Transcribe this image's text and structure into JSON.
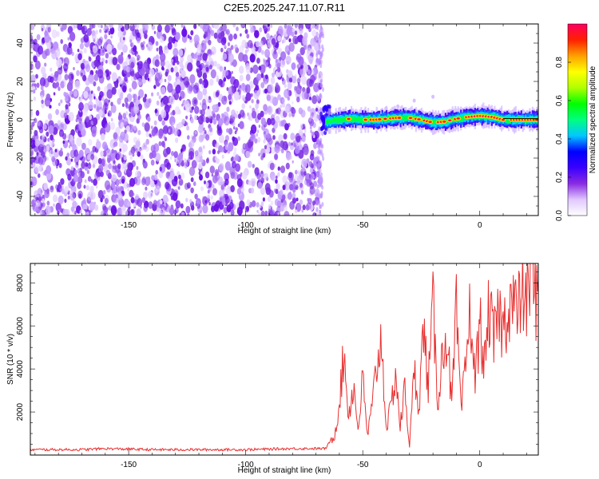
{
  "title": "C2E5.2025.247.11.07.R11",
  "chart_data": [
    {
      "type": "heatmap",
      "name": "spectrogram",
      "title": "C2E5.2025.247.11.07.R11",
      "xlabel": "Height of straight line (km)",
      "ylabel": "Frequency (Hz)",
      "xlim": [
        -192,
        25
      ],
      "ylim": [
        -50,
        50
      ],
      "xticks": [
        -150,
        -100,
        -50,
        0
      ],
      "yticks": [
        -40,
        -20,
        0,
        20,
        40
      ],
      "grid": false,
      "noise_region_x": [
        -192,
        -68
      ],
      "signal_track": [
        {
          "x": -66,
          "y": -1
        },
        {
          "x": -60,
          "y": 0
        },
        {
          "x": -55,
          "y": 0.5
        },
        {
          "x": -50,
          "y": 0
        },
        {
          "x": -45,
          "y": 0
        },
        {
          "x": -40,
          "y": 0.5
        },
        {
          "x": -35,
          "y": 1
        },
        {
          "x": -30,
          "y": 1
        },
        {
          "x": -25,
          "y": 0
        },
        {
          "x": -20,
          "y": -1.5
        },
        {
          "x": -15,
          "y": -1
        },
        {
          "x": -10,
          "y": 0.5
        },
        {
          "x": -5,
          "y": 1.5
        },
        {
          "x": 0,
          "y": 2
        },
        {
          "x": 5,
          "y": 1.5
        },
        {
          "x": 10,
          "y": 0
        },
        {
          "x": 15,
          "y": 0
        },
        {
          "x": 20,
          "y": 0
        },
        {
          "x": 25,
          "y": 0
        }
      ],
      "colorbar": {
        "label": "Normalized spectral amplitude",
        "range": [
          0.0,
          1.0
        ],
        "ticks": [
          "0.0",
          "0.2",
          "0.4",
          "0.6",
          "0.8"
        ],
        "tick_values": [
          0.0,
          0.2,
          0.4,
          0.6,
          0.8
        ],
        "colors": [
          "#ffffff",
          "#e0c8ff",
          "#8a2be2",
          "#3a00ff",
          "#0000ff",
          "#00c8ff",
          "#00ff80",
          "#00ff00",
          "#b0ff00",
          "#ffff00",
          "#ffa000",
          "#ff2000",
          "#ff0060"
        ]
      }
    },
    {
      "type": "line",
      "name": "snr",
      "xlabel": "Height of straight line (km)",
      "ylabel": "SNR (10 * v/v)",
      "xlim": [
        -192,
        25
      ],
      "ylim": [
        0,
        8900
      ],
      "xticks": [
        -150,
        -100,
        -50,
        0
      ],
      "yticks": [
        2000,
        4000,
        6000,
        8000
      ],
      "line_color": "#e83030",
      "series": [
        {
          "name": "SNR",
          "x": [
            -192,
            -170,
            -160,
            -140,
            -120,
            -100,
            -80,
            -66,
            -62,
            -60,
            -58,
            -56,
            -54,
            -52,
            -50,
            -48,
            -46,
            -44,
            -42,
            -40,
            -38,
            -36,
            -34,
            -32,
            -30,
            -28,
            -26,
            -24,
            -22,
            -20,
            -18,
            -16,
            -14,
            -12,
            -10,
            -8,
            -6,
            -4,
            -2,
            0,
            2,
            4,
            6,
            8,
            10,
            12,
            14,
            16,
            18,
            20,
            22,
            24,
            25
          ],
          "values": [
            250,
            250,
            300,
            250,
            250,
            250,
            300,
            300,
            900,
            2500,
            4700,
            1800,
            3300,
            1200,
            3500,
            900,
            2200,
            4200,
            5400,
            1300,
            2100,
            3900,
            1300,
            3100,
            400,
            3900,
            2300,
            5900,
            3200,
            6900,
            2500,
            4600,
            5800,
            2200,
            6600,
            1900,
            4200,
            6900,
            3300,
            6200,
            4100,
            6800,
            5200,
            6600,
            5800,
            6900,
            7300,
            6400,
            7700,
            7000,
            8800,
            7200,
            8100
          ]
        }
      ]
    }
  ]
}
